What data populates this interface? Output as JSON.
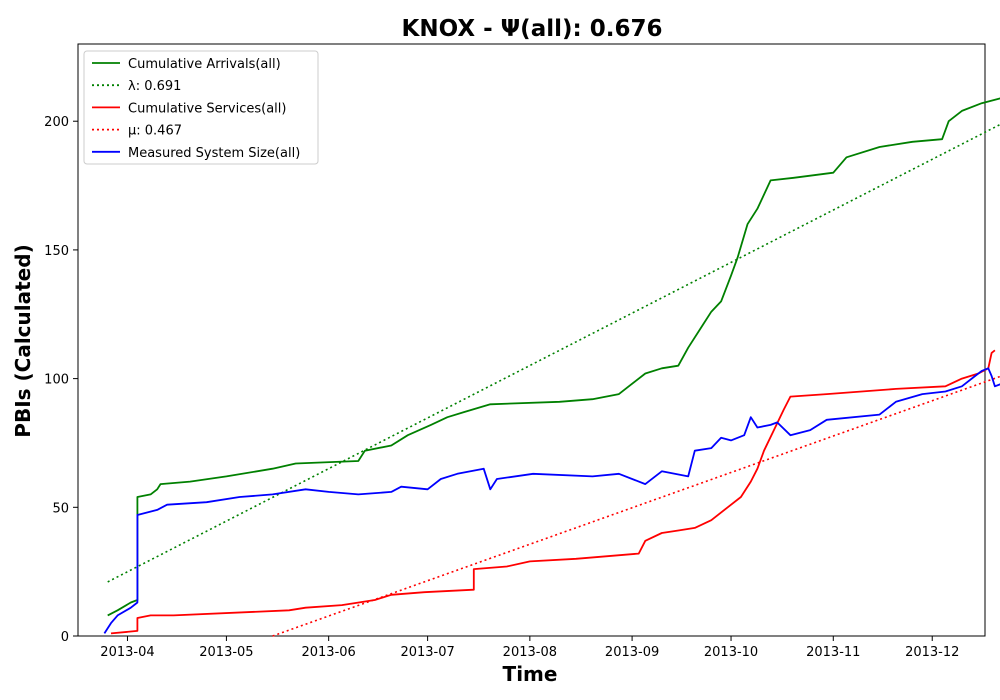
{
  "chart_data": {
    "type": "line",
    "title": "KNOX -  Ψ(all): 0.676",
    "xlabel": "Time",
    "ylabel": "PBIs (Calculated)",
    "xlim": [
      "2013-03-17",
      "2013-12-17"
    ],
    "ylim": [
      0,
      230
    ],
    "x_ticks": [
      "2013-04",
      "2013-05",
      "2013-06",
      "2013-07",
      "2013-08",
      "2013-09",
      "2013-10",
      "2013-11",
      "2013-12"
    ],
    "y_ticks": [
      0,
      50,
      100,
      150,
      200
    ],
    "grid": false,
    "legend_position": "upper-left",
    "series": [
      {
        "name": "Cumulative Arrivals(all)",
        "color": "#008000",
        "style": "solid",
        "points": [
          [
            "2013-03-26",
            8
          ],
          [
            "2013-03-29",
            10
          ],
          [
            "2013-04-02",
            13
          ],
          [
            "2013-04-04",
            14
          ],
          [
            "2013-04-04",
            54
          ],
          [
            "2013-04-08",
            55
          ],
          [
            "2013-04-10",
            57
          ],
          [
            "2013-04-11",
            59
          ],
          [
            "2013-04-20",
            60
          ],
          [
            "2013-05-01",
            62
          ],
          [
            "2013-05-15",
            65
          ],
          [
            "2013-05-22",
            67
          ],
          [
            "2013-06-10",
            68
          ],
          [
            "2013-06-12",
            72
          ],
          [
            "2013-06-20",
            74
          ],
          [
            "2013-06-25",
            78
          ],
          [
            "2013-07-02",
            82
          ],
          [
            "2013-07-07",
            85
          ],
          [
            "2013-07-12",
            87
          ],
          [
            "2013-07-20",
            90
          ],
          [
            "2013-08-10",
            91
          ],
          [
            "2013-08-20",
            92
          ],
          [
            "2013-08-28",
            94
          ],
          [
            "2013-08-31",
            97
          ],
          [
            "2013-09-05",
            102
          ],
          [
            "2013-09-10",
            104
          ],
          [
            "2013-09-15",
            105
          ],
          [
            "2013-09-18",
            112
          ],
          [
            "2013-09-22",
            120
          ],
          [
            "2013-09-25",
            126
          ],
          [
            "2013-09-28",
            130
          ],
          [
            "2013-10-01",
            140
          ],
          [
            "2013-10-03",
            147
          ],
          [
            "2013-10-06",
            160
          ],
          [
            "2013-10-09",
            166
          ],
          [
            "2013-10-13",
            177
          ],
          [
            "2013-10-20",
            178
          ],
          [
            "2013-11-01",
            180
          ],
          [
            "2013-11-05",
            186
          ],
          [
            "2013-11-15",
            190
          ],
          [
            "2013-11-25",
            192
          ],
          [
            "2013-12-04",
            193
          ],
          [
            "2013-12-06",
            200
          ],
          [
            "2013-12-10",
            204
          ],
          [
            "2013-12-16",
            207
          ],
          [
            "2013-12-22",
            209
          ]
        ]
      },
      {
        "name": "λ: 0.691",
        "color": "#008000",
        "style": "dotted",
        "points": [
          [
            "2013-03-26",
            21
          ],
          [
            "2013-12-22",
            199
          ]
        ]
      },
      {
        "name": "Cumulative Services(all)",
        "color": "#ff0000",
        "style": "solid",
        "points": [
          [
            "2013-03-27",
            1
          ],
          [
            "2013-04-04",
            2
          ],
          [
            "2013-04-04",
            7
          ],
          [
            "2013-04-08",
            8
          ],
          [
            "2013-04-15",
            8
          ],
          [
            "2013-05-20",
            10
          ],
          [
            "2013-05-25",
            11
          ],
          [
            "2013-06-05",
            12
          ],
          [
            "2013-06-15",
            14
          ],
          [
            "2013-06-20",
            16
          ],
          [
            "2013-06-30",
            17
          ],
          [
            "2013-07-15",
            18
          ],
          [
            "2013-07-15",
            26
          ],
          [
            "2013-07-25",
            27
          ],
          [
            "2013-08-01",
            29
          ],
          [
            "2013-08-15",
            30
          ],
          [
            "2013-09-03",
            32
          ],
          [
            "2013-09-05",
            37
          ],
          [
            "2013-09-10",
            40
          ],
          [
            "2013-09-15",
            41
          ],
          [
            "2013-09-20",
            42
          ],
          [
            "2013-09-25",
            45
          ],
          [
            "2013-09-30",
            50
          ],
          [
            "2013-10-04",
            54
          ],
          [
            "2013-10-07",
            60
          ],
          [
            "2013-10-09",
            65
          ],
          [
            "2013-10-11",
            72
          ],
          [
            "2013-10-14",
            80
          ],
          [
            "2013-10-17",
            88
          ],
          [
            "2013-10-19",
            93
          ],
          [
            "2013-10-30",
            94
          ],
          [
            "2013-11-20",
            96
          ],
          [
            "2013-12-05",
            97
          ],
          [
            "2013-12-10",
            100
          ],
          [
            "2013-12-15",
            102
          ],
          [
            "2013-12-18",
            104
          ],
          [
            "2013-12-19",
            110
          ],
          [
            "2013-12-20",
            111
          ]
        ]
      },
      {
        "name": "μ: 0.467",
        "color": "#ff0000",
        "style": "dotted",
        "points": [
          [
            "2013-05-15",
            0
          ],
          [
            "2013-12-22",
            101
          ]
        ]
      },
      {
        "name": "Measured System Size(all)",
        "color": "#0000ff",
        "style": "solid",
        "points": [
          [
            "2013-03-25",
            1
          ],
          [
            "2013-03-27",
            5
          ],
          [
            "2013-03-29",
            8
          ],
          [
            "2013-04-02",
            11
          ],
          [
            "2013-04-04",
            13
          ],
          [
            "2013-04-04",
            47
          ],
          [
            "2013-04-10",
            49
          ],
          [
            "2013-04-13",
            51
          ],
          [
            "2013-04-25",
            52
          ],
          [
            "2013-05-05",
            54
          ],
          [
            "2013-05-15",
            55
          ],
          [
            "2013-05-25",
            57
          ],
          [
            "2013-06-01",
            56
          ],
          [
            "2013-06-10",
            55
          ],
          [
            "2013-06-20",
            56
          ],
          [
            "2013-06-23",
            58
          ],
          [
            "2013-07-01",
            57
          ],
          [
            "2013-07-05",
            61
          ],
          [
            "2013-07-10",
            63
          ],
          [
            "2013-07-18",
            65
          ],
          [
            "2013-07-20",
            57
          ],
          [
            "2013-07-22",
            61
          ],
          [
            "2013-08-02",
            63
          ],
          [
            "2013-08-20",
            62
          ],
          [
            "2013-08-28",
            63
          ],
          [
            "2013-09-05",
            59
          ],
          [
            "2013-09-10",
            64
          ],
          [
            "2013-09-18",
            62
          ],
          [
            "2013-09-20",
            72
          ],
          [
            "2013-09-25",
            73
          ],
          [
            "2013-09-28",
            77
          ],
          [
            "2013-10-01",
            76
          ],
          [
            "2013-10-05",
            78
          ],
          [
            "2013-10-07",
            85
          ],
          [
            "2013-10-09",
            81
          ],
          [
            "2013-10-13",
            82
          ],
          [
            "2013-10-15",
            83
          ],
          [
            "2013-10-19",
            78
          ],
          [
            "2013-10-25",
            80
          ],
          [
            "2013-10-30",
            84
          ],
          [
            "2013-11-15",
            86
          ],
          [
            "2013-11-20",
            91
          ],
          [
            "2013-11-28",
            94
          ],
          [
            "2013-12-05",
            95
          ],
          [
            "2013-12-10",
            97
          ],
          [
            "2013-12-14",
            101
          ],
          [
            "2013-12-16",
            103
          ],
          [
            "2013-12-18",
            104
          ],
          [
            "2013-12-19",
            101
          ],
          [
            "2013-12-20",
            97
          ],
          [
            "2013-12-22",
            98
          ]
        ]
      }
    ]
  }
}
